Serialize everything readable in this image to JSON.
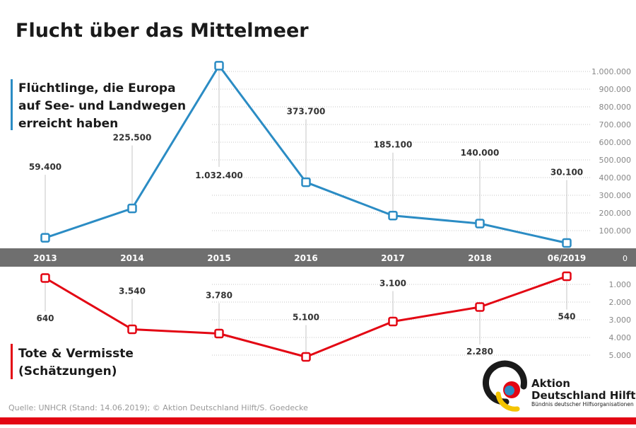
{
  "title": "Flucht über das Mittelmeer",
  "source": "Quelle: UNHCR (Stand: 14.06.2019); © Aktion Deutschland Hilft/S. Goedecke",
  "logo": {
    "line1": "Aktion",
    "line2": "Deutschland Hilft",
    "tagline": "Bündnis deutscher Hilfsorganisationen"
  },
  "colors": {
    "blue": "#2b8cc4",
    "red": "#e30613",
    "band": "#6f6f6f",
    "grid": "#c4c4c4",
    "text": "#1a1a1a",
    "muted": "#888888",
    "bottom_bar": "#e30613"
  },
  "chart_data": {
    "type": "line",
    "categories": [
      "2013",
      "2014",
      "2015",
      "2016",
      "2017",
      "2018",
      "06/2019"
    ],
    "zero_label": "0",
    "series": [
      {
        "name": "Flüchtlinge, die Europa auf See- und Landwegen erreicht haben",
        "legend_lines": [
          "Flüchtlinge, die Europa",
          "auf See- und Landwegen",
          "erreicht haben"
        ],
        "values": [
          59400,
          225500,
          1032400,
          373700,
          185100,
          140000,
          30100
        ],
        "labels": [
          "59.400",
          "225.500",
          "1.032.400",
          "373.700",
          "185.100",
          "140.000",
          "30.100"
        ],
        "axis_ticks": [
          {
            "value": 100000,
            "label": "100.000"
          },
          {
            "value": 200000,
            "label": "200.000"
          },
          {
            "value": 300000,
            "label": "300.000"
          },
          {
            "value": 400000,
            "label": "400.000"
          },
          {
            "value": 500000,
            "label": "500.000"
          },
          {
            "value": 600000,
            "label": "600.000"
          },
          {
            "value": 700000,
            "label": "700.000"
          },
          {
            "value": 800000,
            "label": "800.000"
          },
          {
            "value": 900000,
            "label": "900.000"
          },
          {
            "value": 1000000,
            "label": "1.000.000"
          }
        ],
        "ylim": [
          0,
          1000000
        ]
      },
      {
        "name": "Tote & Vermisste (Schätzungen)",
        "legend_lines": [
          "Tote & Vermisste",
          "(Schätzungen)"
        ],
        "values": [
          640,
          3540,
          3780,
          5100,
          3100,
          2280,
          540
        ],
        "labels": [
          "640",
          "3.540",
          "3.780",
          "5.100",
          "3.100",
          "2.280",
          "540"
        ],
        "axis_ticks": [
          {
            "value": 1000,
            "label": "1.000"
          },
          {
            "value": 2000,
            "label": "2.000"
          },
          {
            "value": 3000,
            "label": "3.000"
          },
          {
            "value": 4000,
            "label": "4.000"
          },
          {
            "value": 5000,
            "label": "5.000"
          }
        ],
        "ylim": [
          0,
          5000
        ],
        "inverted": true
      }
    ]
  }
}
